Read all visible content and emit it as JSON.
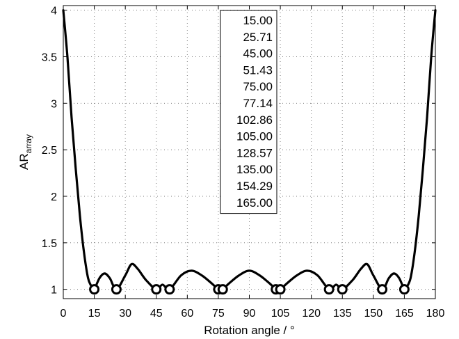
{
  "chart_data": {
    "type": "line",
    "xlabel": "Rotation angle / °",
    "ylabel": "AR",
    "ylabel_subscript": "array",
    "xlim": [
      0,
      180
    ],
    "ylim": [
      0.9,
      4.05
    ],
    "xticks": [
      0,
      15,
      30,
      45,
      60,
      75,
      90,
      105,
      120,
      135,
      150,
      165,
      180
    ],
    "yticks": [
      1,
      1.5,
      2,
      2.5,
      3,
      3.5,
      4
    ],
    "grid": true,
    "series": [
      {
        "style": "solid",
        "x": [
          0,
          2,
          4,
          6,
          8,
          10,
          12,
          14,
          15,
          17.5,
          20,
          22.5,
          25.71,
          30,
          33,
          36,
          40,
          45,
          48,
          51.43,
          57,
          62,
          67,
          72,
          75,
          76.07,
          77.14,
          80,
          85,
          90,
          95,
          100,
          102.86,
          103.93,
          105,
          108,
          113,
          118,
          123,
          128.57,
          132,
          135,
          140,
          144,
          147,
          150,
          154.29,
          157.5,
          160,
          162.5,
          165,
          166,
          168,
          170,
          172,
          174,
          176,
          178,
          180
        ],
        "y": [
          4.0,
          3.5,
          2.85,
          2.3,
          1.8,
          1.4,
          1.12,
          1.02,
          1.0,
          1.12,
          1.17,
          1.12,
          1.0,
          1.15,
          1.27,
          1.22,
          1.1,
          1.0,
          1.05,
          1.0,
          1.15,
          1.2,
          1.15,
          1.06,
          1.0,
          1.02,
          1.0,
          1.06,
          1.15,
          1.2,
          1.15,
          1.06,
          1.0,
          1.02,
          1.0,
          1.06,
          1.15,
          1.2,
          1.15,
          1.0,
          1.05,
          1.0,
          1.1,
          1.22,
          1.27,
          1.15,
          1.0,
          1.12,
          1.17,
          1.12,
          1.0,
          1.02,
          1.12,
          1.4,
          1.8,
          2.3,
          2.85,
          3.5,
          4.0
        ]
      }
    ],
    "markers": {
      "shape": "circle",
      "x": [
        15.0,
        25.71,
        45.0,
        51.43,
        75.0,
        77.14,
        102.86,
        105.0,
        128.57,
        135.0,
        154.29,
        165.0
      ],
      "y": [
        1,
        1,
        1,
        1,
        1,
        1,
        1,
        1,
        1,
        1,
        1,
        1
      ]
    },
    "annotation_box": {
      "lines": [
        "15.00",
        "25.71",
        "45.00",
        "51.43",
        "75.00",
        "77.14",
        "102.86",
        "105.00",
        "128.57",
        "135.00",
        "154.29",
        "165.00"
      ]
    }
  }
}
